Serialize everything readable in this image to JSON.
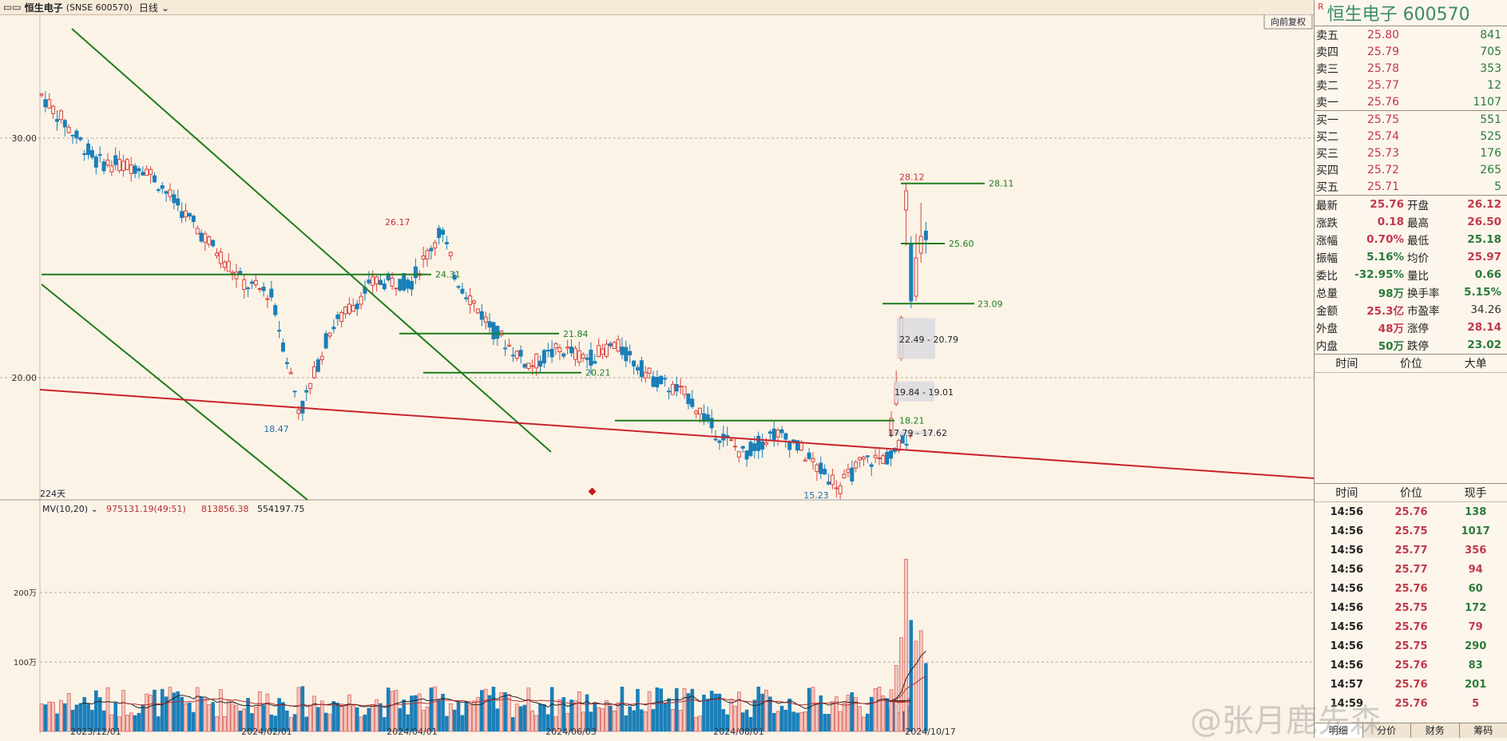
{
  "topbar": {
    "icon": "toggle-icon",
    "name": "恒生电子",
    "code": "(SNSE 600570)",
    "period": "日线"
  },
  "chart": {
    "stock_mark": "R",
    "restore_btn": "向前复权",
    "days_label": "224天",
    "y_labels": [
      "30.00",
      "20.00"
    ],
    "x_labels": [
      "2023/12/01",
      "2024/02/01",
      "2024/04/01",
      "2024/06/03",
      "2024/08/01",
      "2024/10/17"
    ],
    "vol_y_labels": [
      "200万",
      "100万"
    ],
    "indicator": {
      "name": "MV(10,20)",
      "v1": "975131.19(49:51)",
      "v2": "813856.38",
      "v3": "554197.75"
    },
    "annotations": {
      "h28": "28.12",
      "l28": "28.11",
      "l2560": "25.60",
      "l2309": "23.09",
      "gap1": "22.49 - 20.79",
      "gap2": "19.84 - 19.01",
      "gap3": "17.79 - 17.62",
      "l1821": "18.21",
      "h2617": "26.17",
      "l2431": "24.31",
      "l2184": "21.84",
      "l2021": "20.21",
      "low1847": "18.47",
      "low1523": "15.23"
    }
  },
  "quote": {
    "title": "恒生电子  600570",
    "asks": [
      {
        "label": "卖五",
        "price": "25.80",
        "vol": "841"
      },
      {
        "label": "卖四",
        "price": "25.79",
        "vol": "705"
      },
      {
        "label": "卖三",
        "price": "25.78",
        "vol": "353"
      },
      {
        "label": "卖二",
        "price": "25.77",
        "vol": "12"
      },
      {
        "label": "卖一",
        "price": "25.76",
        "vol": "1107"
      }
    ],
    "bids": [
      {
        "label": "买一",
        "price": "25.75",
        "vol": "551"
      },
      {
        "label": "买二",
        "price": "25.74",
        "vol": "525"
      },
      {
        "label": "买三",
        "price": "25.73",
        "vol": "176"
      },
      {
        "label": "买四",
        "price": "25.72",
        "vol": "265"
      },
      {
        "label": "买五",
        "price": "25.71",
        "vol": "5"
      }
    ],
    "stats": [
      {
        "k1": "最新",
        "v1": "25.76",
        "c1": "red",
        "k2": "开盘",
        "v2": "26.12",
        "c2": "red"
      },
      {
        "k1": "涨跌",
        "v1": "0.18",
        "c1": "red",
        "k2": "最高",
        "v2": "26.50",
        "c2": "red"
      },
      {
        "k1": "涨幅",
        "v1": "0.70%",
        "c1": "red",
        "k2": "最低",
        "v2": "25.18",
        "c2": "green"
      },
      {
        "k1": "振幅",
        "v1": "5.16%",
        "c1": "green",
        "k2": "均价",
        "v2": "25.97",
        "c2": "red"
      },
      {
        "k1": "委比",
        "v1": "-32.95%",
        "c1": "green",
        "k2": "量比",
        "v2": "0.66",
        "c2": "green"
      },
      {
        "k1": "总量",
        "v1": "98万",
        "c1": "green",
        "k2": "换手率",
        "v2": "5.15%",
        "c2": "green"
      },
      {
        "k1": "金额",
        "v1": "25.3亿",
        "c1": "red",
        "k2": "市盈率",
        "v2": "34.26",
        "c2": "dark"
      },
      {
        "k1": "外盘",
        "v1": "48万",
        "c1": "red",
        "k2": "涨停",
        "v2": "28.14",
        "c2": "red"
      },
      {
        "k1": "内盘",
        "v1": "50万",
        "c1": "green",
        "k2": "跌停",
        "v2": "23.02",
        "c2": "green"
      }
    ],
    "big_header": {
      "c1": "时间",
      "c2": "价位",
      "c3": "大单"
    },
    "tick_header": {
      "c1": "时间",
      "c2": "价位",
      "c3": "现手"
    },
    "ticks": [
      {
        "t": "14:56",
        "p": "25.76",
        "v": "138",
        "c": "g"
      },
      {
        "t": "14:56",
        "p": "25.75",
        "v": "1017",
        "c": "g"
      },
      {
        "t": "14:56",
        "p": "25.77",
        "v": "356",
        "c": "r"
      },
      {
        "t": "14:56",
        "p": "25.77",
        "v": "94",
        "c": "r"
      },
      {
        "t": "14:56",
        "p": "25.76",
        "v": "60",
        "c": "g"
      },
      {
        "t": "14:56",
        "p": "25.75",
        "v": "172",
        "c": "g"
      },
      {
        "t": "14:56",
        "p": "25.76",
        "v": "79",
        "c": "r"
      },
      {
        "t": "14:56",
        "p": "25.75",
        "v": "290",
        "c": "g"
      },
      {
        "t": "14:56",
        "p": "25.76",
        "v": "83",
        "c": "g"
      },
      {
        "t": "14:57",
        "p": "25.76",
        "v": "201",
        "c": "g"
      },
      {
        "t": "14:59",
        "p": "25.76",
        "v": "5",
        "c": "r"
      }
    ],
    "tabs": [
      "明细",
      "分价",
      "财务",
      "筹码"
    ]
  },
  "watermark": "@张月鹿先森",
  "colors": {
    "up": "#d9443c",
    "down": "#1a7fb8",
    "trend": "#1e7d1e",
    "red_line": "#c8242c"
  }
}
